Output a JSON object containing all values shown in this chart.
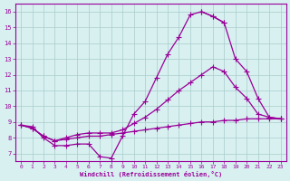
{
  "xlabel": "Windchill (Refroidissement éolien,°C)",
  "x": [
    0,
    1,
    2,
    3,
    4,
    5,
    6,
    7,
    8,
    9,
    10,
    11,
    12,
    13,
    14,
    15,
    16,
    17,
    18,
    19,
    20,
    21,
    22,
    23
  ],
  "line_top": [
    8.8,
    8.7,
    8.0,
    7.5,
    7.5,
    7.6,
    7.6,
    6.8,
    6.7,
    8.1,
    9.5,
    10.3,
    11.8,
    13.3,
    14.4,
    15.8,
    16.0,
    15.7,
    15.3,
    null,
    null,
    null,
    null,
    null
  ],
  "line_mid1": [
    null,
    null,
    null,
    null,
    null,
    null,
    null,
    null,
    null,
    null,
    null,
    null,
    null,
    null,
    null,
    null,
    16.0,
    15.7,
    15.3,
    13.0,
    12.2,
    10.5,
    9.3,
    9.2
  ],
  "line_mid2": [
    8.8,
    8.6,
    8.1,
    7.8,
    8.0,
    8.2,
    8.3,
    8.3,
    8.3,
    8.5,
    8.9,
    9.3,
    9.8,
    10.4,
    11.0,
    11.5,
    12.0,
    12.5,
    12.2,
    11.2,
    10.5,
    9.5,
    9.3,
    9.2
  ],
  "line_bot": [
    8.8,
    8.6,
    8.1,
    7.8,
    7.9,
    8.0,
    8.1,
    8.1,
    8.2,
    8.3,
    8.4,
    8.5,
    8.6,
    8.7,
    8.8,
    8.9,
    9.0,
    9.0,
    9.1,
    9.1,
    9.2,
    9.2,
    9.2,
    9.2
  ],
  "color": "#990099",
  "bg_color": "#d8f0f0",
  "grid_color": "#aacccc",
  "ylim": [
    6.5,
    16.5
  ],
  "xlim": [
    -0.5,
    23.5
  ],
  "yticks": [
    7,
    8,
    9,
    10,
    11,
    12,
    13,
    14,
    15,
    16
  ],
  "xticks": [
    0,
    1,
    2,
    3,
    4,
    5,
    6,
    7,
    8,
    9,
    10,
    11,
    12,
    13,
    14,
    15,
    16,
    17,
    18,
    19,
    20,
    21,
    22,
    23
  ]
}
